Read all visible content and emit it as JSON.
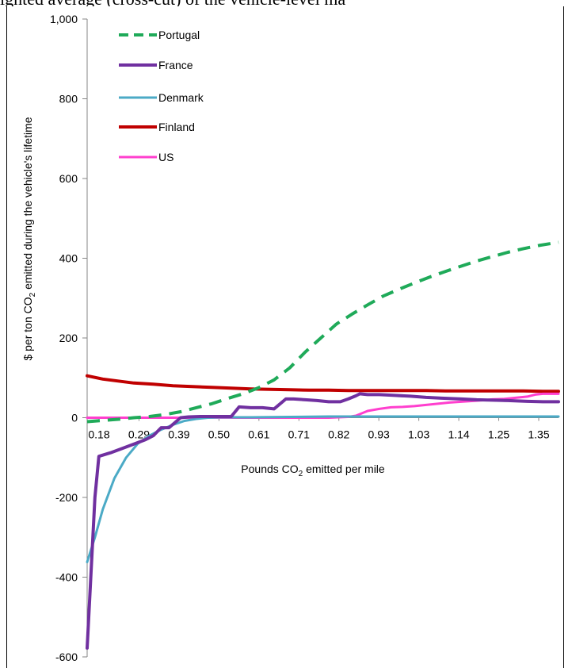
{
  "caption": "ighted average (cross-cut) of the vehicle-level ma",
  "chart_data": {
    "type": "line",
    "xlabel_parts": [
      "Pounds CO",
      "2",
      " emitted per mile"
    ],
    "ylabel_parts": [
      "$ per ton CO",
      "2",
      " emitted during the vehicle's lifetime"
    ],
    "x_tick_labels": [
      "0.18",
      "0.29",
      "0.39",
      "0.50",
      "0.61",
      "0.71",
      "0.82",
      "0.93",
      "1.03",
      "1.14",
      "1.25",
      "1.35"
    ],
    "y_ticks": [
      -600,
      -400,
      -200,
      0,
      200,
      400,
      600,
      800,
      1000
    ],
    "y_tick_labels": [
      "-600",
      "-400",
      "-200",
      "0",
      "200",
      "400",
      "600",
      "800",
      "1,000"
    ],
    "ylim": [
      -600,
      1000
    ],
    "xlim": [
      0.18,
      1.39
    ],
    "grid": false,
    "legend_position": "top-left",
    "series": [
      {
        "name": "Portugal",
        "color": "#1faa59",
        "dash": true,
        "width": 4,
        "x": [
          0.18,
          0.22,
          0.26,
          0.3,
          0.34,
          0.38,
          0.42,
          0.46,
          0.5,
          0.54,
          0.58,
          0.62,
          0.66,
          0.7,
          0.74,
          0.78,
          0.82,
          0.86,
          0.9,
          0.94,
          0.98,
          1.02,
          1.06,
          1.1,
          1.14,
          1.18,
          1.22,
          1.26,
          1.3,
          1.34,
          1.39
        ],
        "y": [
          -10,
          -7,
          -4,
          0,
          3,
          8,
          15,
          25,
          35,
          48,
          60,
          75,
          95,
          125,
          165,
          200,
          235,
          260,
          283,
          305,
          322,
          338,
          353,
          367,
          380,
          393,
          404,
          415,
          424,
          432,
          440
        ]
      },
      {
        "name": "France",
        "color": "#7030a0",
        "dash": false,
        "width": 4,
        "x": [
          0.18,
          0.2,
          0.21,
          0.24,
          0.27,
          0.3,
          0.33,
          0.35,
          0.37,
          0.39,
          0.42,
          0.44,
          0.47,
          0.5,
          0.53,
          0.55,
          0.57,
          0.6,
          0.63,
          0.66,
          0.69,
          0.71,
          0.74,
          0.77,
          0.8,
          0.83,
          0.85,
          0.87,
          0.88,
          0.9,
          0.93,
          0.97,
          1.01,
          1.05,
          1.09,
          1.14,
          1.18,
          1.22,
          1.26,
          1.31,
          1.35,
          1.39
        ],
        "y": [
          -578,
          -200,
          -97,
          -88,
          -77,
          -66,
          -55,
          -45,
          -25,
          -25,
          0,
          2,
          3,
          3,
          3,
          3,
          27,
          25,
          25,
          22,
          47,
          47,
          45,
          43,
          40,
          40,
          47,
          55,
          60,
          58,
          58,
          56,
          54,
          51,
          49,
          47,
          45,
          44,
          43,
          41,
          40,
          40
        ]
      },
      {
        "name": "Denmark",
        "color": "#4baac6",
        "dash": false,
        "width": 3,
        "x": [
          0.18,
          0.2,
          0.22,
          0.25,
          0.28,
          0.31,
          0.34,
          0.37,
          0.4,
          0.43,
          0.46,
          0.49,
          0.52,
          0.55,
          0.6,
          0.7,
          0.8,
          0.9,
          1.0,
          1.1,
          1.2,
          1.3,
          1.39
        ],
        "y": [
          -362,
          -300,
          -230,
          -152,
          -100,
          -65,
          -45,
          -30,
          -18,
          -8,
          -3,
          0,
          1,
          1,
          1,
          2,
          3,
          3,
          3,
          3,
          3,
          3,
          3
        ]
      },
      {
        "name": "Finland",
        "color": "#c00000",
        "dash": false,
        "width": 4,
        "x": [
          0.18,
          0.22,
          0.26,
          0.3,
          0.35,
          0.4,
          0.45,
          0.5,
          0.55,
          0.6,
          0.65,
          0.7,
          0.75,
          0.8,
          0.85,
          0.9,
          0.95,
          1.0,
          1.05,
          1.1,
          1.15,
          1.2,
          1.25,
          1.3,
          1.35,
          1.39
        ],
        "y": [
          105,
          97,
          92,
          87,
          84,
          80,
          78,
          76,
          74,
          72,
          71,
          70,
          69,
          69,
          68,
          68,
          68,
          68,
          68,
          67,
          67,
          67,
          67,
          67,
          66,
          66
        ]
      },
      {
        "name": "US",
        "color": "#ff3fce",
        "dash": false,
        "width": 3,
        "x": [
          0.18,
          0.3,
          0.4,
          0.5,
          0.6,
          0.7,
          0.8,
          0.85,
          0.87,
          0.9,
          0.93,
          0.96,
          0.99,
          1.02,
          1.05,
          1.08,
          1.11,
          1.14,
          1.17,
          1.2,
          1.22,
          1.25,
          1.28,
          1.31,
          1.33,
          1.35,
          1.39
        ],
        "y": [
          0,
          0,
          0,
          0,
          0,
          0,
          0,
          2,
          5,
          17,
          22,
          26,
          27,
          29,
          32,
          35,
          38,
          40,
          42,
          44,
          46,
          47,
          50,
          53,
          58,
          60,
          60
        ]
      }
    ]
  }
}
